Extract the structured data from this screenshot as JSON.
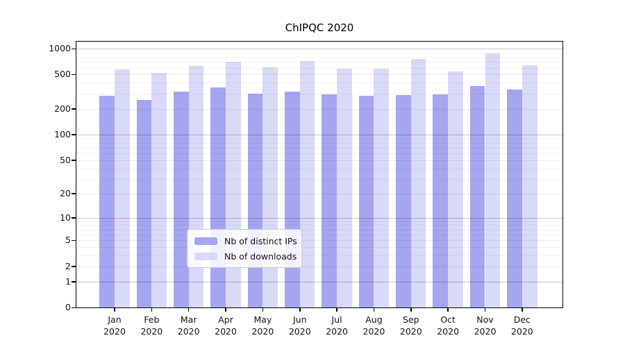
{
  "title": "ChIPQC 2020",
  "chart_data": {
    "type": "bar",
    "title": "ChIPQC 2020",
    "categories": [
      "Jan 2020",
      "Feb 2020",
      "Mar 2020",
      "Apr 2020",
      "May 2020",
      "Jun 2020",
      "Jul 2020",
      "Aug 2020",
      "Sep 2020",
      "Oct 2020",
      "Nov 2020",
      "Dec 2020"
    ],
    "months": [
      "Jan",
      "Feb",
      "Mar",
      "Apr",
      "May",
      "Jun",
      "Jul",
      "Aug",
      "Sep",
      "Oct",
      "Nov",
      "Dec"
    ],
    "year": "2020",
    "series": [
      {
        "name": "Nb of distinct IPs",
        "color": "#a5a5f0",
        "values": [
          281,
          255,
          318,
          353,
          297,
          319,
          292,
          285,
          286,
          296,
          366,
          332
        ]
      },
      {
        "name": "Nb of downloads",
        "color": "#d9d9f8",
        "values": [
          569,
          520,
          633,
          703,
          607,
          716,
          588,
          580,
          755,
          538,
          877,
          641
        ]
      }
    ],
    "yscale": "log1p",
    "ylim": [
      0,
      1000
    ],
    "yticks": [
      0,
      1,
      2,
      5,
      10,
      20,
      50,
      100,
      200,
      500,
      1000
    ],
    "decade_ticks": [
      1,
      10,
      100,
      1000
    ],
    "grid": "on",
    "legend": {
      "position": "inside-bottom-center",
      "entries": [
        "Nb of distinct IPs",
        "Nb of downloads"
      ]
    }
  },
  "colors": {
    "background": "#ffffff",
    "bar_ips": "#a5a5f0",
    "bar_downloads": "#d9d9f8",
    "spine": "#000000",
    "text": "#111111",
    "grid_decade": "rgba(0,0,0,0.22)",
    "grid_labeled": "rgba(0,0,0,0.08)",
    "grid_minor": "rgba(0,0,0,0.05)",
    "legend_border": "#cccccc",
    "legend_bg": "rgba(255,255,255,0.85)"
  }
}
